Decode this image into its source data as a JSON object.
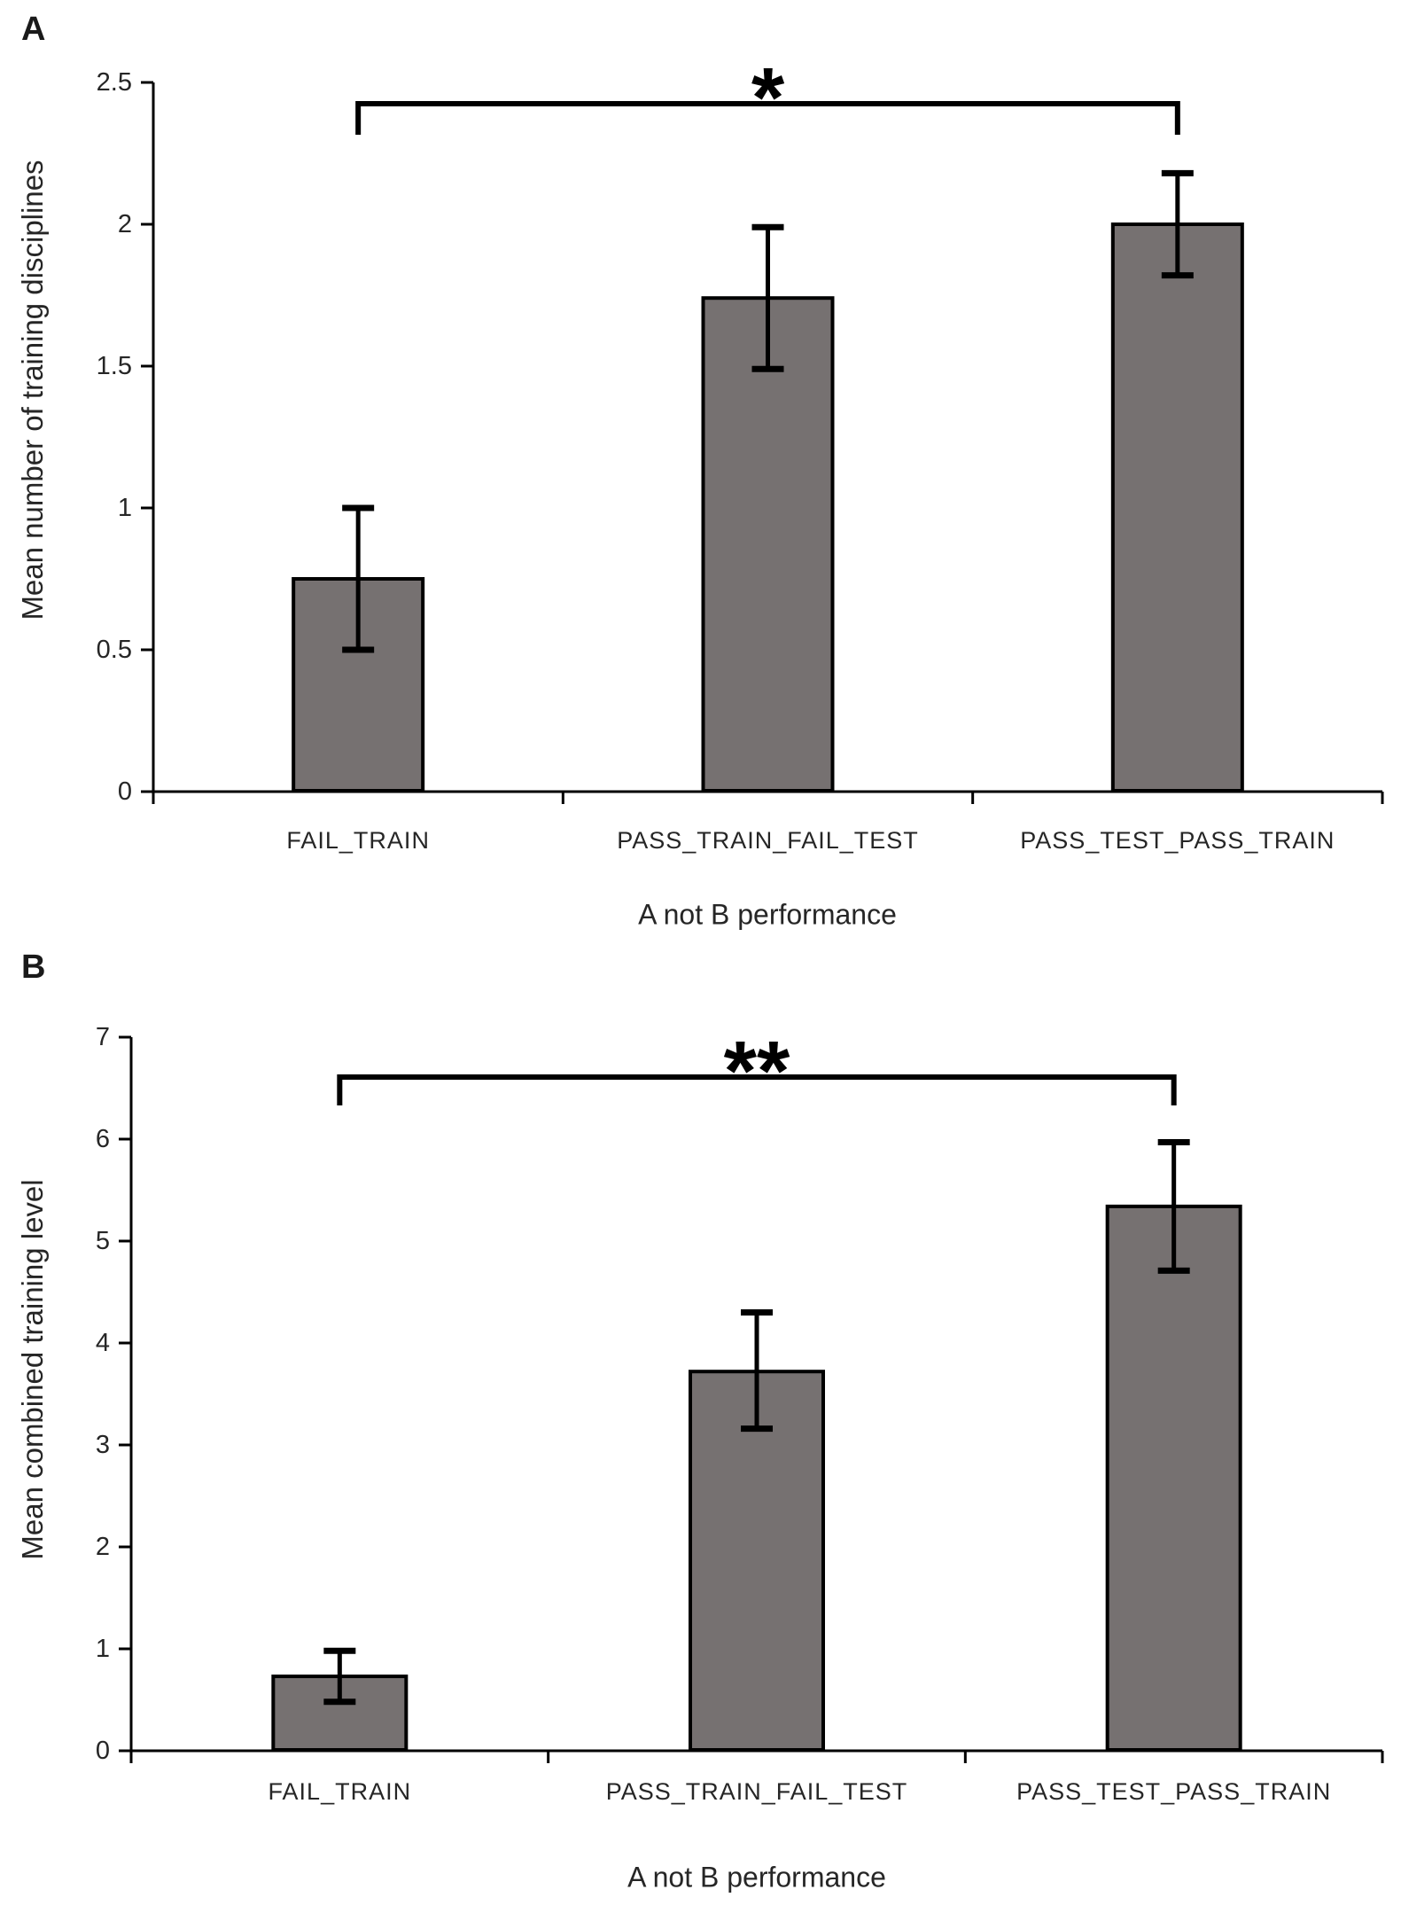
{
  "colors": {
    "bar_fill": "#767171",
    "bar_border": "#000000",
    "axis_line": "#000000",
    "error_bar": "#000000",
    "text": "#262626",
    "background": "#ffffff"
  },
  "chart_data": [
    {
      "type": "bar",
      "panel_label": "A",
      "xlabel": "A not B performance",
      "ylabel": "Mean number of training disciplines",
      "categories": [
        "FAIL_TRAIN",
        "PASS_TRAIN_FAIL_TEST",
        "PASS_TEST_PASS_TRAIN"
      ],
      "values": [
        0.75,
        1.74,
        2.0
      ],
      "error_low": [
        0.5,
        1.49,
        1.82
      ],
      "error_high": [
        1.0,
        1.99,
        2.18
      ],
      "ylim": [
        0,
        2.5
      ],
      "yticks": [
        0,
        0.5,
        1,
        1.5,
        2,
        2.5
      ],
      "ytick_labels": [
        "0",
        "0.5",
        "1",
        "1.5",
        "2",
        "2.5"
      ],
      "grid": false,
      "legend": "none",
      "significance": {
        "label": "*",
        "from_category": 0,
        "to_category": 2
      }
    },
    {
      "type": "bar",
      "panel_label": "B",
      "xlabel": "A not B performance",
      "ylabel": "Mean combined training level",
      "categories": [
        "FAIL_TRAIN",
        "PASS_TRAIN_FAIL_TEST",
        "PASS_TEST_PASS_TRAIN"
      ],
      "values": [
        0.73,
        3.72,
        5.34
      ],
      "error_low": [
        0.48,
        3.16,
        4.71
      ],
      "error_high": [
        0.98,
        4.3,
        5.97
      ],
      "ylim": [
        0,
        7
      ],
      "yticks": [
        0,
        1,
        2,
        3,
        4,
        5,
        6,
        7
      ],
      "ytick_labels": [
        "0",
        "1",
        "2",
        "3",
        "4",
        "5",
        "6",
        "7"
      ],
      "grid": false,
      "legend": "none",
      "significance": {
        "label": "**",
        "from_category": 0,
        "to_category": 2
      }
    }
  ]
}
